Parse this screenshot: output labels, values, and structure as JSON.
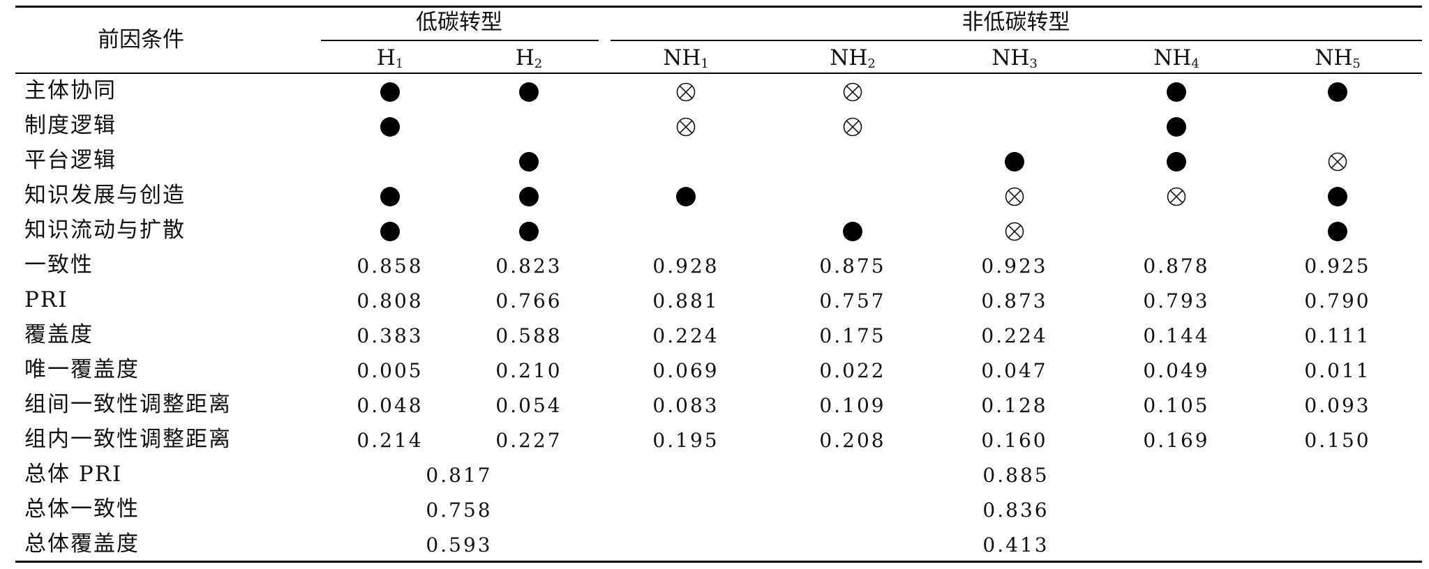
{
  "header": {
    "condition_label": "前因条件",
    "group_low": "低碳转型",
    "group_non": "非低碳转型",
    "configs": [
      {
        "base": "H",
        "sub": "1"
      },
      {
        "base": "H",
        "sub": "2"
      },
      {
        "base": "NH",
        "sub": "1"
      },
      {
        "base": "NH",
        "sub": "2"
      },
      {
        "base": "NH",
        "sub": "3"
      },
      {
        "base": "NH",
        "sub": "4"
      },
      {
        "base": "NH",
        "sub": "5"
      }
    ]
  },
  "legend_symbols": {
    "present": "●",
    "absent": "⊗"
  },
  "condition_rows": [
    {
      "label": "主体协同",
      "marks": [
        "present",
        "present",
        "absent",
        "absent",
        "",
        "present",
        "present"
      ]
    },
    {
      "label": "制度逻辑",
      "marks": [
        "present",
        "",
        "absent",
        "absent",
        "",
        "present",
        ""
      ]
    },
    {
      "label": "平台逻辑",
      "marks": [
        "",
        "present",
        "",
        "",
        "present",
        "present",
        "absent"
      ]
    },
    {
      "label": "知识发展与创造",
      "marks": [
        "present",
        "present",
        "present",
        "",
        "absent",
        "absent",
        "present"
      ]
    },
    {
      "label": "知识流动与扩散",
      "marks": [
        "present",
        "present",
        "",
        "present",
        "absent",
        "",
        "present"
      ]
    }
  ],
  "metric_rows": [
    {
      "label": "一致性",
      "values": [
        "0.858",
        "0.823",
        "0.928",
        "0.875",
        "0.923",
        "0.878",
        "0.925"
      ]
    },
    {
      "label": "PRI",
      "values": [
        "0.808",
        "0.766",
        "0.881",
        "0.757",
        "0.873",
        "0.793",
        "0.790"
      ]
    },
    {
      "label": "覆盖度",
      "values": [
        "0.383",
        "0.588",
        "0.224",
        "0.175",
        "0.224",
        "0.144",
        "0.111"
      ]
    },
    {
      "label": "唯一覆盖度",
      "values": [
        "0.005",
        "0.210",
        "0.069",
        "0.022",
        "0.047",
        "0.049",
        "0.011"
      ]
    },
    {
      "label": "组间一致性调整距离",
      "values": [
        "0.048",
        "0.054",
        "0.083",
        "0.109",
        "0.128",
        "0.105",
        "0.093"
      ]
    },
    {
      "label": "组内一致性调整距离",
      "values": [
        "0.214",
        "0.227",
        "0.195",
        "0.208",
        "0.160",
        "0.169",
        "0.150"
      ]
    }
  ],
  "overall_rows": [
    {
      "label": "总体 PRI",
      "low": "0.817",
      "non": "0.885"
    },
    {
      "label": "总体一致性",
      "low": "0.758",
      "non": "0.836"
    },
    {
      "label": "总体覆盖度",
      "low": "0.593",
      "non": "0.413"
    }
  ]
}
